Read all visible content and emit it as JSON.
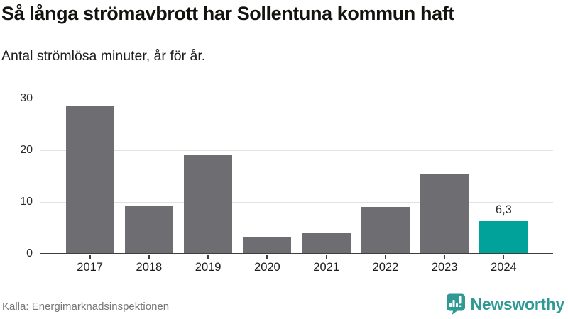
{
  "header": {
    "title": "Så långa strömavbrott har Sollentuna kommun haft",
    "subtitle": "Antal strömlösa minuter, år för år."
  },
  "chart_data": {
    "type": "bar",
    "title": "Så långa strömavbrott har Sollentuna kommun haft",
    "subtitle": "Antal strömlösa minuter, år för år.",
    "categories": [
      "2017",
      "2018",
      "2019",
      "2020",
      "2021",
      "2022",
      "2023",
      "2024"
    ],
    "values": [
      28.5,
      9.2,
      19.1,
      3.2,
      4.1,
      9.1,
      15.5,
      6.3
    ],
    "value_labels": [
      "",
      "",
      "",
      "",
      "",
      "",
      "",
      "6,3"
    ],
    "highlight_index": 7,
    "xlabel": "",
    "ylabel": "",
    "ylim": [
      0,
      30
    ],
    "yticks": [
      0,
      10,
      20,
      30
    ],
    "grid": true,
    "legend": "none",
    "bar_color": "#6d6d72",
    "highlight_color": "#00a29a",
    "gridline_color": "#e2e2e2",
    "axis_color": "#3e3e3e"
  },
  "footer": {
    "source": "Källa: Energimarknadsinspektionen",
    "brand_name": "Newsworthy",
    "brand_color": "#2f9a93",
    "logo_icon": "newsworthy-speech-bubble-bar-chart-icon"
  }
}
